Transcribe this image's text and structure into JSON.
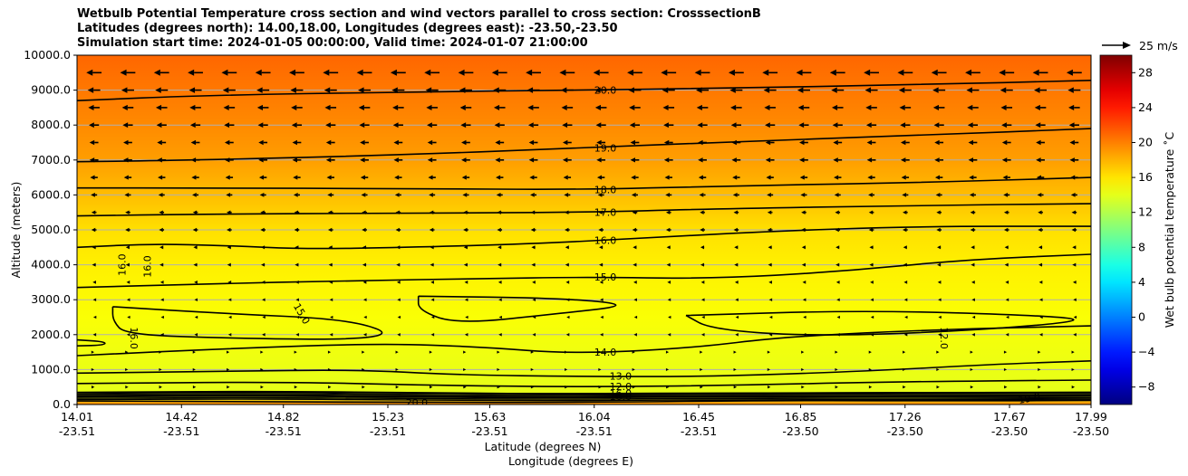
{
  "chart_data": {
    "type": "heatmap",
    "title_lines": [
      "Wetbulb Potential Temperature cross section and wind vectors parallel to cross section: CrosssectionB",
      "Latitudes (degrees north): 14.00,18.00, Longitudes (degrees east): -23.50,-23.50",
      "Simulation start time: 2024-01-05 00:00:00, Valid time: 2024-01-07 21:00:00"
    ],
    "xlabel": "Latitude (degrees N)",
    "xlabel2": "Longitude (degrees E)",
    "ylabel": "Altitude (meters)",
    "xlim": [
      14.01,
      17.99
    ],
    "ylim": [
      0,
      10000
    ],
    "x_ticks": [
      {
        "lat": "14.01",
        "lon": "-23.51",
        "v": 14.01
      },
      {
        "lat": "14.42",
        "lon": "-23.51",
        "v": 14.42
      },
      {
        "lat": "14.82",
        "lon": "-23.51",
        "v": 14.82
      },
      {
        "lat": "15.23",
        "lon": "-23.51",
        "v": 15.23
      },
      {
        "lat": "15.63",
        "lon": "-23.51",
        "v": 15.63
      },
      {
        "lat": "16.04",
        "lon": "-23.51",
        "v": 16.04
      },
      {
        "lat": "16.45",
        "lon": "-23.51",
        "v": 16.45
      },
      {
        "lat": "16.85",
        "lon": "-23.50",
        "v": 16.85
      },
      {
        "lat": "17.26",
        "lon": "-23.50",
        "v": 17.26
      },
      {
        "lat": "17.67",
        "lon": "-23.50",
        "v": 17.67
      },
      {
        "lat": "17.99",
        "lon": "-23.50",
        "v": 17.99
      }
    ],
    "y_ticks": [
      {
        "label": "0.0",
        "v": 0
      },
      {
        "label": "1000.0",
        "v": 1000
      },
      {
        "label": "2000.0",
        "v": 2000
      },
      {
        "label": "3000.0",
        "v": 3000
      },
      {
        "label": "4000.0",
        "v": 4000
      },
      {
        "label": "5000.0",
        "v": 5000
      },
      {
        "label": "6000.0",
        "v": 6000
      },
      {
        "label": "7000.0",
        "v": 7000
      },
      {
        "label": "8000.0",
        "v": 8000
      },
      {
        "label": "9000.0",
        "v": 9000
      },
      {
        "label": "10000.0",
        "v": 10000
      }
    ],
    "grid": "horizontal",
    "colorbar": {
      "label": "Wet bulb potential temperature ˚C",
      "range": [
        -10,
        30
      ],
      "ticks": [
        "-8",
        "-4",
        "0",
        "4",
        "8",
        "12",
        "16",
        "20",
        "24",
        "28"
      ],
      "colormap": "jet"
    },
    "wind_key": {
      "label": "25 m/s"
    },
    "background_profile": [
      {
        "alt": 0,
        "temp": 20
      },
      {
        "alt": 200,
        "temp": 14
      },
      {
        "alt": 1000,
        "temp": 14.2
      },
      {
        "alt": 2500,
        "temp": 14.8
      },
      {
        "alt": 4000,
        "temp": 15.6
      },
      {
        "alt": 5000,
        "temp": 16.2
      },
      {
        "alt": 6000,
        "temp": 17.6
      },
      {
        "alt": 7000,
        "temp": 18.8
      },
      {
        "alt": 8000,
        "temp": 19.6
      },
      {
        "alt": 9000,
        "temp": 20.3
      },
      {
        "alt": 10000,
        "temp": 21
      }
    ],
    "contours": [
      {
        "value": "20.0",
        "points": [
          [
            14.01,
            8700
          ],
          [
            14.5,
            8850
          ],
          [
            15.3,
            8950
          ],
          [
            16.0,
            9000
          ],
          [
            16.5,
            9050
          ],
          [
            17.3,
            9150
          ],
          [
            17.99,
            9280
          ]
        ],
        "label_at": [
          16.04,
          9000
        ]
      },
      {
        "value": "19.0",
        "points": [
          [
            14.01,
            6950
          ],
          [
            14.5,
            7000
          ],
          [
            15.3,
            7150
          ],
          [
            16.0,
            7350
          ],
          [
            16.5,
            7500
          ],
          [
            17.3,
            7700
          ],
          [
            17.99,
            7900
          ]
        ],
        "label_at": [
          16.04,
          7350
        ]
      },
      {
        "value": "18.0",
        "points": [
          [
            14.01,
            6200
          ],
          [
            14.5,
            6200
          ],
          [
            15.3,
            6180
          ],
          [
            16.0,
            6150
          ],
          [
            16.5,
            6250
          ],
          [
            17.3,
            6350
          ],
          [
            17.99,
            6500
          ]
        ],
        "label_at": [
          16.04,
          6150
        ]
      },
      {
        "value": "17.0",
        "points": [
          [
            14.01,
            5400
          ],
          [
            14.5,
            5450
          ],
          [
            15.3,
            5480
          ],
          [
            16.0,
            5500
          ],
          [
            16.5,
            5600
          ],
          [
            17.3,
            5700
          ],
          [
            17.99,
            5750
          ]
        ],
        "label_at": [
          16.04,
          5500
        ]
      },
      {
        "value": "16.0",
        "points": [
          [
            14.01,
            4500
          ],
          [
            14.3,
            4600
          ],
          [
            14.6,
            4550
          ],
          [
            14.9,
            4450
          ],
          [
            15.3,
            4500
          ],
          [
            15.8,
            4600
          ],
          [
            16.2,
            4750
          ],
          [
            16.7,
            4950
          ],
          [
            17.3,
            5100
          ],
          [
            17.99,
            5100
          ]
        ],
        "label_at": [
          16.04,
          4700
        ]
      },
      {
        "value": "15.0",
        "points": [
          [
            14.01,
            3350
          ],
          [
            14.5,
            3450
          ],
          [
            15.1,
            3550
          ],
          [
            15.6,
            3600
          ],
          [
            16.0,
            3650
          ],
          [
            16.5,
            3600
          ],
          [
            17.0,
            3800
          ],
          [
            17.5,
            4150
          ],
          [
            17.99,
            4300
          ]
        ],
        "label_at": [
          16.04,
          3650
        ]
      },
      {
        "value": "14.0",
        "points": [
          [
            14.01,
            1400
          ],
          [
            14.6,
            1600
          ],
          [
            15.2,
            1750
          ],
          [
            15.6,
            1650
          ],
          [
            15.95,
            1450
          ],
          [
            16.4,
            1600
          ],
          [
            16.8,
            1950
          ],
          [
            17.4,
            2150
          ],
          [
            17.99,
            2250
          ]
        ],
        "label_at": [
          16.04,
          1500
        ]
      },
      {
        "value": "13.0",
        "points": [
          [
            14.01,
            900
          ],
          [
            14.6,
            950
          ],
          [
            15.1,
            1000
          ],
          [
            15.5,
            850
          ],
          [
            16.0,
            800
          ],
          [
            16.5,
            800
          ],
          [
            17.1,
            950
          ],
          [
            17.6,
            1150
          ],
          [
            17.99,
            1250
          ]
        ],
        "label_at": [
          16.1,
          820
        ]
      },
      {
        "value": "12.0",
        "points": [
          [
            14.01,
            600
          ],
          [
            14.8,
            650
          ],
          [
            15.4,
            550
          ],
          [
            16.0,
            500
          ],
          [
            16.6,
            550
          ],
          [
            17.2,
            650
          ],
          [
            17.99,
            700
          ]
        ],
        "label_at": [
          16.1,
          520
        ]
      },
      {
        "value": "16.0",
        "points": [
          [
            14.01,
            350
          ],
          [
            14.8,
            380
          ],
          [
            15.4,
            330
          ],
          [
            16.0,
            300
          ],
          [
            16.6,
            330
          ],
          [
            17.99,
            350
          ]
        ],
        "label_at": [
          16.1,
          330
        ]
      },
      {
        "value": "18.0",
        "points": [
          [
            14.01,
            250
          ],
          [
            15.0,
            240
          ],
          [
            16.0,
            220
          ],
          [
            17.0,
            230
          ],
          [
            17.99,
            240
          ]
        ],
        "label_at": [
          16.1,
          230
        ]
      },
      {
        "value": "20.0",
        "points": [
          [
            14.01,
            100
          ],
          [
            14.8,
            80
          ],
          [
            15.3,
            60
          ],
          [
            16.0,
            60
          ],
          [
            16.8,
            120
          ],
          [
            17.5,
            100
          ],
          [
            17.99,
            120
          ]
        ],
        "label_at": [
          15.3,
          60
        ]
      }
    ],
    "extra_contour_labels": [
      {
        "text": "16.0",
        "at": [
          14.2,
          4000
        ],
        "rotate": -90
      },
      {
        "text": "16.0",
        "at": [
          14.3,
          3950
        ],
        "rotate": -90
      },
      {
        "text": "15.0",
        "at": [
          14.88,
          2550
        ],
        "rotate": 60
      },
      {
        "text": "16.0",
        "at": [
          14.22,
          1900
        ],
        "rotate": 90
      },
      {
        "text": "12.0",
        "at": [
          17.4,
          1900
        ],
        "rotate": 90
      },
      {
        "text": "19.0",
        "at": [
          17.75,
          80
        ],
        "rotate": -10
      }
    ],
    "closed_contours": [
      {
        "value": "14.0",
        "points": [
          [
            14.15,
            2800
          ],
          [
            14.6,
            2600
          ],
          [
            15.05,
            2450
          ],
          [
            15.25,
            2050
          ],
          [
            15.1,
            1850
          ],
          [
            14.6,
            1900
          ],
          [
            14.2,
            2000
          ],
          [
            14.15,
            2400
          ],
          [
            14.15,
            2800
          ]
        ]
      },
      {
        "value": "14.0",
        "points": [
          [
            15.35,
            3100
          ],
          [
            15.9,
            3050
          ],
          [
            16.2,
            2850
          ],
          [
            15.9,
            2600
          ],
          [
            15.5,
            2300
          ],
          [
            15.35,
            2700
          ],
          [
            15.35,
            3100
          ]
        ]
      },
      {
        "value": "14.0",
        "points": [
          [
            16.4,
            2550
          ],
          [
            17.1,
            2700
          ],
          [
            17.8,
            2550
          ],
          [
            17.99,
            2400
          ],
          [
            17.5,
            2100
          ],
          [
            16.9,
            1950
          ],
          [
            16.5,
            2150
          ],
          [
            16.4,
            2550
          ]
        ]
      },
      {
        "value": "14.0",
        "points": [
          [
            14.01,
            1850
          ],
          [
            14.12,
            1800
          ],
          [
            14.12,
            1700
          ],
          [
            14.01,
            1680
          ]
        ]
      }
    ],
    "wind": {
      "rows_alt": [
        9500,
        9000,
        8500,
        8000,
        7500,
        7000,
        6500,
        6000,
        5500,
        5000,
        4500,
        4000,
        3500,
        3000,
        2500,
        2000,
        1500,
        1000,
        500
      ],
      "u_by_alt": [
        -12,
        -10,
        -9,
        -8,
        -7,
        -7,
        -6,
        -5,
        -4,
        -4,
        -3,
        -3,
        -2,
        -1.5,
        -1,
        -1.5,
        0.5,
        0.5,
        1
      ],
      "columns": 30
    }
  }
}
